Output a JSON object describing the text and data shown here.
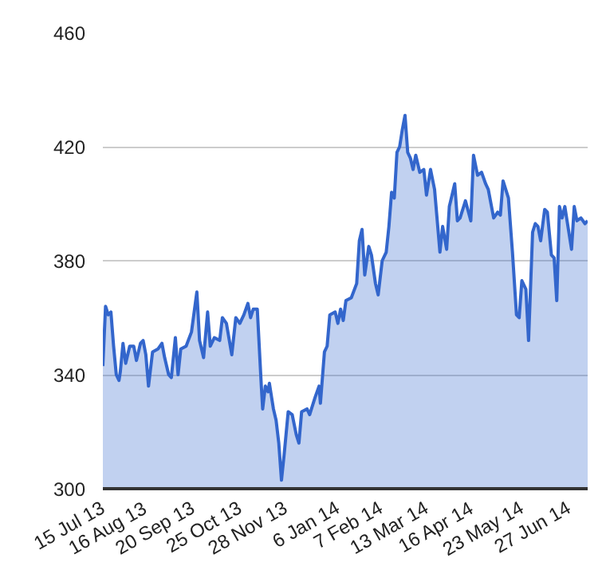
{
  "chart_data": {
    "type": "area",
    "x": [
      "2013-07-15",
      "2013-07-17",
      "2013-07-19",
      "2013-07-21",
      "2013-07-23",
      "2013-07-25",
      "2013-07-27",
      "2013-07-28",
      "2013-07-30",
      "2013-08-01",
      "2013-08-04",
      "2013-08-07",
      "2013-08-09",
      "2013-08-12",
      "2013-08-14",
      "2013-08-16",
      "2013-08-18",
      "2013-08-21",
      "2013-08-25",
      "2013-08-28",
      "2013-08-30",
      "2013-09-02",
      "2013-09-04",
      "2013-09-07",
      "2013-09-09",
      "2013-09-11",
      "2013-09-15",
      "2013-09-19",
      "2013-09-23",
      "2013-09-25",
      "2013-09-28",
      "2013-10-01",
      "2013-10-03",
      "2013-10-06",
      "2013-10-10",
      "2013-10-12",
      "2013-10-15",
      "2013-10-19",
      "2013-10-22",
      "2013-10-25",
      "2013-10-28",
      "2013-10-31",
      "2013-11-02",
      "2013-11-04",
      "2013-11-07",
      "2013-11-10",
      "2013-11-11",
      "2013-11-13",
      "2013-11-15",
      "2013-11-16",
      "2013-11-19",
      "2013-11-21",
      "2013-11-23",
      "2013-11-25",
      "2013-11-27",
      "2013-11-30",
      "2013-12-03",
      "2013-12-06",
      "2013-12-08",
      "2013-12-10",
      "2013-12-14",
      "2013-12-16",
      "2013-12-20",
      "2013-12-23",
      "2013-12-24",
      "2013-12-27",
      "2013-12-29",
      "2013-12-31",
      "2014-01-04",
      "2014-01-06",
      "2014-01-08",
      "2014-01-10",
      "2014-01-12",
      "2014-01-16",
      "2014-01-20",
      "2014-01-22",
      "2014-01-24",
      "2014-01-26",
      "2014-01-29",
      "2014-01-31",
      "2014-02-03",
      "2014-02-05",
      "2014-02-08",
      "2014-02-11",
      "2014-02-13",
      "2014-02-15",
      "2014-02-17",
      "2014-02-19",
      "2014-02-21",
      "2014-02-23",
      "2014-02-25",
      "2014-02-27",
      "2014-03-01",
      "2014-03-03",
      "2014-03-05",
      "2014-03-08",
      "2014-03-11",
      "2014-03-13",
      "2014-03-16",
      "2014-03-19",
      "2014-03-23",
      "2014-03-25",
      "2014-03-28",
      "2014-03-30",
      "2014-04-03",
      "2014-04-05",
      "2014-04-07",
      "2014-04-11",
      "2014-04-15",
      "2014-04-17",
      "2014-04-20",
      "2014-04-23",
      "2014-04-26",
      "2014-04-28",
      "2014-05-02",
      "2014-05-05",
      "2014-05-07",
      "2014-05-09",
      "2014-05-11",
      "2014-05-13",
      "2014-05-16",
      "2014-05-19",
      "2014-05-21",
      "2014-05-23",
      "2014-05-26",
      "2014-05-28",
      "2014-05-31",
      "2014-06-02",
      "2014-06-04",
      "2014-06-06",
      "2014-06-09",
      "2014-06-11",
      "2014-06-14",
      "2014-06-16",
      "2014-06-18",
      "2014-06-20",
      "2014-06-22",
      "2014-06-24",
      "2014-06-27",
      "2014-06-29",
      "2014-07-01",
      "2014-07-03",
      "2014-07-06",
      "2014-07-09",
      "2014-07-11"
    ],
    "series": [
      {
        "color": "#3366cc",
        "values": [
          343,
          364,
          361,
          362,
          350,
          340,
          338,
          341,
          351,
          344,
          350,
          350,
          345,
          351,
          352,
          347,
          336,
          348,
          349,
          351,
          346,
          340,
          339,
          353,
          340,
          349,
          350,
          355,
          369,
          352,
          346,
          362,
          350,
          353,
          352,
          360,
          358,
          347,
          360,
          358,
          361,
          365,
          360,
          363,
          363,
          336,
          328,
          336,
          334,
          337,
          328,
          324,
          316,
          303,
          312,
          327,
          326,
          319,
          316,
          327,
          328,
          326,
          332,
          336,
          330,
          348,
          350,
          361,
          362,
          358,
          363,
          359,
          366,
          367,
          372,
          387,
          391,
          375,
          385,
          382,
          372,
          368,
          380,
          383,
          392,
          404,
          402,
          418,
          420,
          426,
          431,
          418,
          416,
          412,
          417,
          411,
          412,
          403,
          412,
          405,
          383,
          392,
          384,
          399,
          407,
          394,
          395,
          401,
          394,
          417,
          410,
          411,
          407,
          405,
          395,
          397,
          396,
          408,
          405,
          402,
          383,
          361,
          360,
          373,
          370,
          352,
          390,
          393,
          392,
          387,
          398,
          397,
          382,
          381,
          366,
          399,
          395,
          399,
          390,
          384,
          399,
          394,
          395,
          393,
          394
        ]
      }
    ],
    "xlim": [
      "2013-07-15",
      "2014-07-11"
    ],
    "xticks": [
      {
        "value": "2013-07-15",
        "label": "15 Jul 13"
      },
      {
        "value": "2013-08-16",
        "label": "16 Aug 13"
      },
      {
        "value": "2013-09-20",
        "label": "20 Sep 13"
      },
      {
        "value": "2013-10-25",
        "label": "25 Oct 13"
      },
      {
        "value": "2013-11-28",
        "label": "28 Nov 13"
      },
      {
        "value": "2014-01-06",
        "label": "6 Jan 14"
      },
      {
        "value": "2014-02-07",
        "label": "7 Feb 14"
      },
      {
        "value": "2014-03-13",
        "label": "13 Mar 14"
      },
      {
        "value": "2014-04-16",
        "label": "16 Apr 14"
      },
      {
        "value": "2014-05-23",
        "label": "23 May 14"
      },
      {
        "value": "2014-06-27",
        "label": "27 Jun 14"
      }
    ],
    "ylim": [
      300,
      460
    ],
    "yticks": [
      300,
      340,
      380,
      420,
      460
    ],
    "grid": "y",
    "marker": "none",
    "line_style": "solid"
  }
}
